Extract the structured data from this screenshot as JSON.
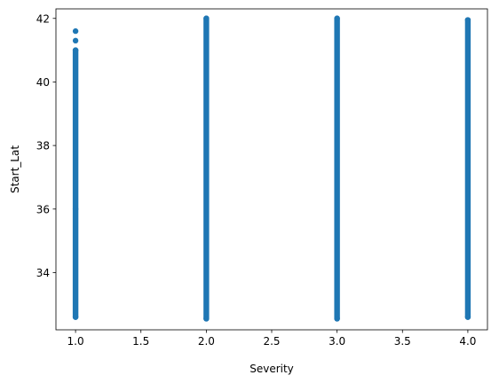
{
  "chart_data": {
    "type": "scatter",
    "title": "",
    "xlabel": "Severity",
    "ylabel": "Start_Lat",
    "xlim": [
      0.85,
      4.15
    ],
    "ylim": [
      32.2,
      42.3
    ],
    "x_ticks": [
      1.0,
      1.5,
      2.0,
      2.5,
      3.0,
      3.5,
      4.0
    ],
    "x_tick_labels": [
      "1.0",
      "1.5",
      "2.0",
      "2.5",
      "3.0",
      "3.5",
      "4.0"
    ],
    "y_ticks": [
      34,
      36,
      38,
      40,
      42
    ],
    "y_tick_labels": [
      "34",
      "36",
      "38",
      "40",
      "42"
    ],
    "grid": false,
    "marker_color": "#1f77b4",
    "series": [
      {
        "x": [
          1.0,
          1.0,
          1.0,
          1.0,
          1.0,
          2.0,
          2.0,
          3.0,
          3.0,
          4.0,
          4.0
        ],
        "y": [
          41.6,
          41.3,
          41.0,
          32.6,
          36.0,
          42.0,
          32.55,
          42.0,
          32.55,
          41.95,
          32.6
        ]
      }
    ],
    "strips": [
      {
        "x": 1.0,
        "y_min": 32.6,
        "y_max": 41.0
      },
      {
        "x": 2.0,
        "y_min": 32.55,
        "y_max": 42.0
      },
      {
        "x": 3.0,
        "y_min": 32.55,
        "y_max": 42.0
      },
      {
        "x": 4.0,
        "y_min": 32.6,
        "y_max": 41.95
      }
    ]
  }
}
